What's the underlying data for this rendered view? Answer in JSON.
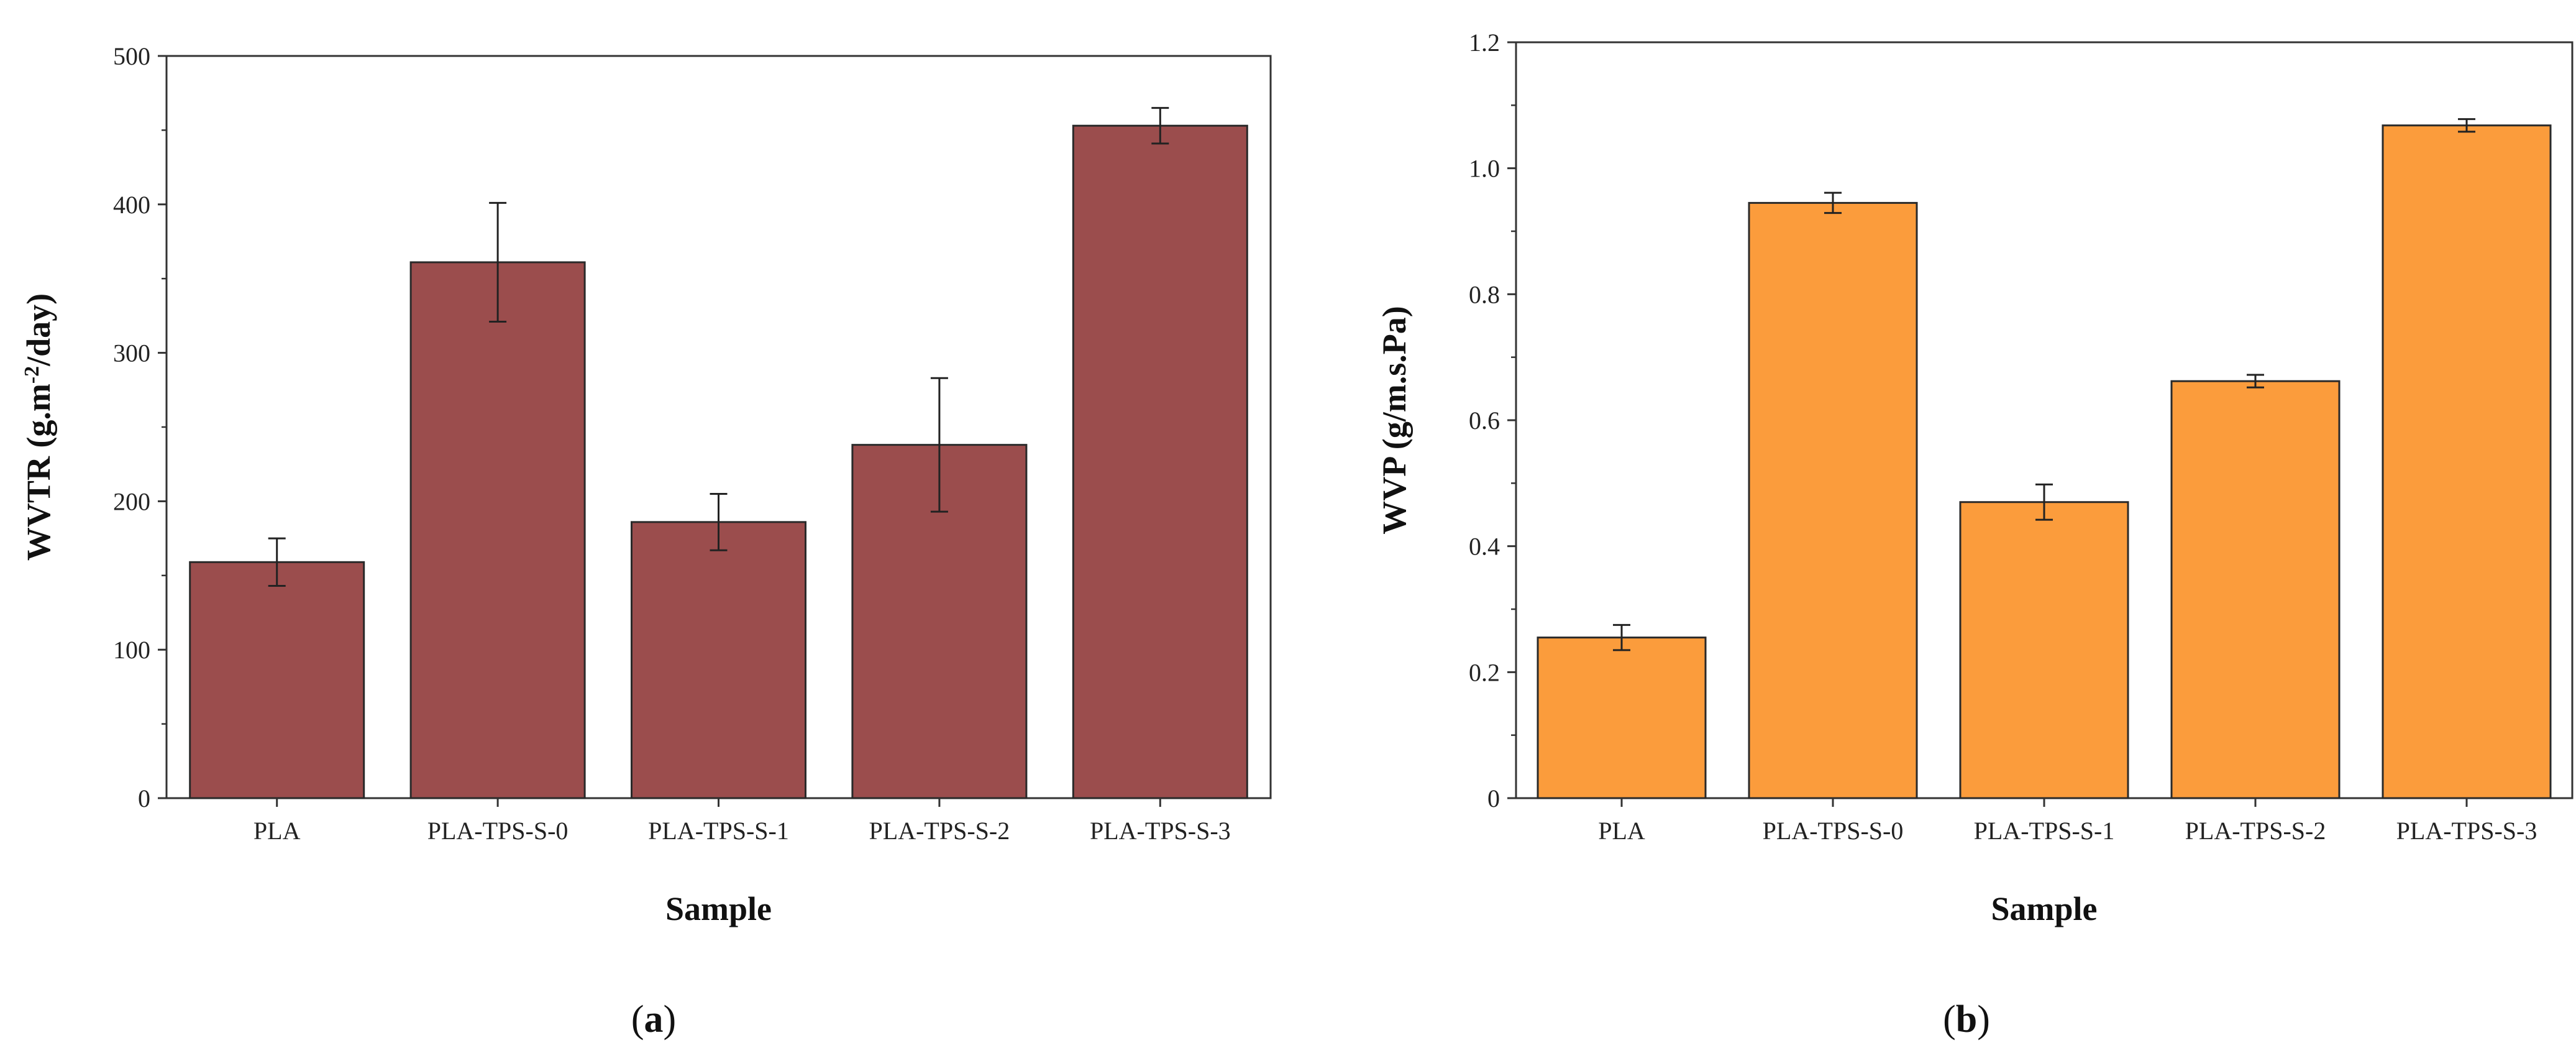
{
  "chart_data": [
    {
      "type": "bar",
      "panel_label": "a",
      "categories": [
        "PLA",
        "PLA-TPS-S-0",
        "PLA-TPS-S-1",
        "PLA-TPS-S-2",
        "PLA-TPS-S-3"
      ],
      "values": [
        159,
        361,
        186,
        238,
        453
      ],
      "errors": [
        16,
        40,
        19,
        45,
        12
      ],
      "xlabel": "Sample",
      "ylabel_main": "WVTR (g.m",
      "ylabel_sup": "-2",
      "ylabel_tail": "/day)",
      "ylim": [
        0,
        500
      ],
      "yticks": [
        "0",
        "100",
        "200",
        "300",
        "400",
        "500"
      ],
      "bar_color": "#9b4d4d"
    },
    {
      "type": "bar",
      "panel_label": "b",
      "categories": [
        "PLA",
        "PLA-TPS-S-0",
        "PLA-TPS-S-1",
        "PLA-TPS-S-2",
        "PLA-TPS-S-3"
      ],
      "values": [
        0.255,
        0.945,
        0.47,
        0.662,
        1.068
      ],
      "errors": [
        0.02,
        0.016,
        0.028,
        0.01,
        0.01
      ],
      "xlabel": "Sample",
      "ylabel": "WVP (g/m.s.Pa)",
      "ylim": [
        0,
        1.2
      ],
      "yticks": [
        "0",
        "0.2",
        "0.4",
        "0.6",
        "0.8",
        "1.0",
        "1.2"
      ],
      "bar_color": "#fb9c3c"
    }
  ]
}
